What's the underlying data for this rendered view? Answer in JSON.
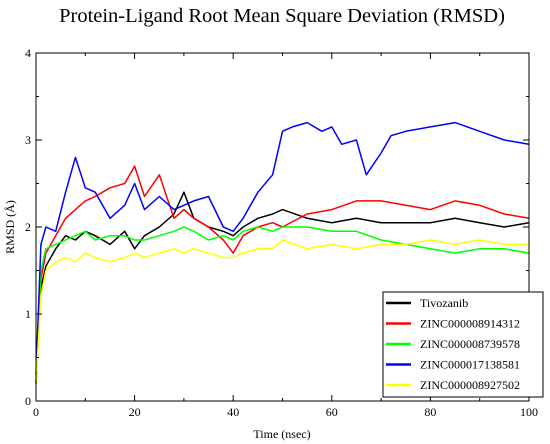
{
  "chart_data": {
    "type": "line",
    "title": "Protein-Ligand Root Mean Square Deviation (RMSD)",
    "xlabel": "Time (nsec)",
    "ylabel": "RMSD (Å)",
    "xlim": [
      0,
      100
    ],
    "ylim": [
      0,
      4
    ],
    "xticks": [
      "0",
      "20",
      "40",
      "60",
      "80",
      "100"
    ],
    "yticks": [
      "0",
      "1",
      "2",
      "3",
      "4"
    ],
    "grid": false,
    "legend_position": "bottom-right",
    "series": [
      {
        "name": "Tivozanib",
        "color": "#000000",
        "x": [
          0,
          1,
          2,
          4,
          6,
          8,
          10,
          12,
          15,
          18,
          20,
          22,
          25,
          28,
          30,
          32,
          35,
          38,
          40,
          42,
          45,
          48,
          50,
          55,
          60,
          65,
          70,
          75,
          80,
          85,
          90,
          95,
          100
        ],
        "y": [
          0.2,
          1.3,
          1.55,
          1.75,
          1.9,
          1.85,
          1.95,
          1.9,
          1.8,
          1.95,
          1.75,
          1.9,
          2.0,
          2.15,
          2.4,
          2.1,
          2.0,
          1.95,
          1.9,
          2.0,
          2.1,
          2.15,
          2.2,
          2.1,
          2.05,
          2.1,
          2.05,
          2.05,
          2.05,
          2.1,
          2.05,
          2.0,
          2.05
        ]
      },
      {
        "name": "ZINC000008914312",
        "color": "#ff0000",
        "x": [
          0,
          1,
          2,
          4,
          6,
          8,
          10,
          12,
          15,
          18,
          20,
          22,
          25,
          28,
          30,
          32,
          35,
          38,
          40,
          42,
          45,
          48,
          50,
          55,
          60,
          65,
          70,
          75,
          80,
          85,
          90,
          95,
          100
        ],
        "y": [
          0.2,
          1.4,
          1.7,
          1.9,
          2.1,
          2.2,
          2.3,
          2.35,
          2.45,
          2.5,
          2.7,
          2.35,
          2.6,
          2.1,
          2.2,
          2.1,
          2.0,
          1.85,
          1.7,
          1.9,
          2.0,
          2.05,
          2.0,
          2.15,
          2.2,
          2.3,
          2.3,
          2.25,
          2.2,
          2.3,
          2.25,
          2.15,
          2.1
        ]
      },
      {
        "name": "ZINC000008739578",
        "color": "#00ff00",
        "x": [
          0,
          1,
          2,
          4,
          6,
          8,
          10,
          12,
          15,
          18,
          20,
          22,
          25,
          28,
          30,
          32,
          35,
          38,
          40,
          42,
          45,
          48,
          50,
          55,
          60,
          65,
          70,
          75,
          80,
          85,
          90,
          95,
          100
        ],
        "y": [
          0.2,
          1.5,
          1.75,
          1.8,
          1.85,
          1.9,
          1.95,
          1.85,
          1.9,
          1.9,
          1.85,
          1.85,
          1.9,
          1.95,
          2.0,
          1.95,
          1.85,
          1.9,
          1.85,
          1.95,
          2.0,
          1.95,
          2.0,
          2.0,
          1.95,
          1.95,
          1.85,
          1.8,
          1.75,
          1.7,
          1.75,
          1.75,
          1.7
        ]
      },
      {
        "name": "ZINC000017138581",
        "color": "#0000ff",
        "x": [
          0,
          1,
          2,
          4,
          6,
          8,
          10,
          12,
          15,
          18,
          20,
          22,
          25,
          28,
          30,
          32,
          35,
          38,
          40,
          42,
          45,
          48,
          50,
          52,
          55,
          58,
          60,
          62,
          65,
          67,
          70,
          72,
          75,
          80,
          85,
          90,
          95,
          100
        ],
        "y": [
          0.3,
          1.8,
          2.0,
          1.95,
          2.4,
          2.8,
          2.45,
          2.4,
          2.1,
          2.25,
          2.5,
          2.2,
          2.35,
          2.2,
          2.25,
          2.3,
          2.35,
          2.0,
          1.95,
          2.1,
          2.4,
          2.6,
          3.1,
          3.15,
          3.2,
          3.1,
          3.15,
          2.95,
          3.0,
          2.6,
          2.85,
          3.05,
          3.1,
          3.15,
          3.2,
          3.1,
          3.0,
          2.95
        ]
      },
      {
        "name": "ZINC000008927502",
        "color": "#ffff00",
        "x": [
          0,
          1,
          2,
          4,
          6,
          8,
          10,
          12,
          15,
          18,
          20,
          22,
          25,
          28,
          30,
          32,
          35,
          38,
          40,
          42,
          45,
          48,
          50,
          55,
          60,
          65,
          70,
          75,
          80,
          85,
          90,
          95,
          100
        ],
        "y": [
          0.2,
          1.2,
          1.5,
          1.6,
          1.65,
          1.6,
          1.7,
          1.65,
          1.6,
          1.65,
          1.7,
          1.65,
          1.7,
          1.75,
          1.7,
          1.75,
          1.7,
          1.65,
          1.65,
          1.7,
          1.75,
          1.75,
          1.85,
          1.75,
          1.8,
          1.75,
          1.8,
          1.8,
          1.85,
          1.8,
          1.85,
          1.8,
          1.8
        ]
      }
    ]
  }
}
